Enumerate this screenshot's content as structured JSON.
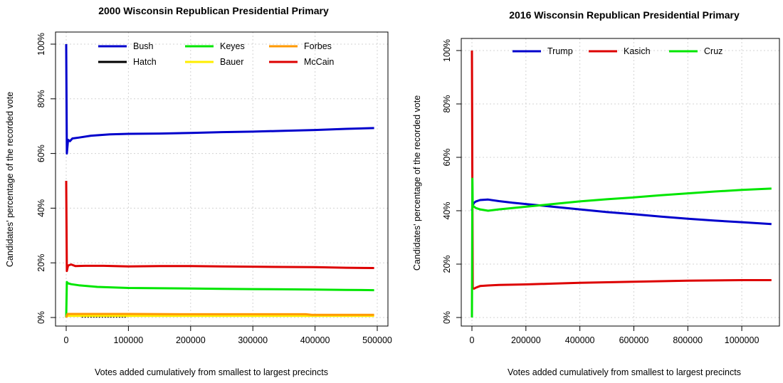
{
  "chart_data": [
    {
      "type": "line",
      "title": "2000 Wisconsin Republican Presidential Primary",
      "xlabel": "Votes added cumulatively from smallest to largest precincts",
      "ylabel": "Candidates' percentage of the recorded vote",
      "xlim": [
        0,
        500000
      ],
      "ylim": [
        0,
        100
      ],
      "x_ticks": [
        "0",
        "100000",
        "200000",
        "300000",
        "400000",
        "500000"
      ],
      "y_ticks": [
        "0%",
        "20%",
        "40%",
        "60%",
        "80%",
        "100%"
      ],
      "grid": true,
      "legend_position": "top",
      "series": [
        {
          "name": "Bush",
          "color": "#0000cc",
          "x": [
            0,
            1000,
            3000,
            6000,
            10000,
            20000,
            40000,
            70000,
            100000,
            150000,
            200000,
            250000,
            300000,
            350000,
            400000,
            450000,
            495000
          ],
          "y": [
            100,
            60,
            65,
            64.5,
            65.5,
            65.8,
            66.5,
            67,
            67.2,
            67.3,
            67.5,
            67.8,
            68,
            68.3,
            68.6,
            69,
            69.3
          ]
        },
        {
          "name": "Hatch",
          "color": "#000000",
          "x": [
            25000,
            50000,
            75000,
            97000
          ],
          "y": [
            0.1,
            0.1,
            0.1,
            0.1
          ]
        },
        {
          "name": "Keyes",
          "color": "#00e600",
          "x": [
            0,
            1000,
            3000,
            8000,
            20000,
            50000,
            100000,
            150000,
            200000,
            250000,
            300000,
            350000,
            400000,
            450000,
            495000
          ],
          "y": [
            0,
            13,
            12.5,
            12.2,
            11.8,
            11.2,
            10.8,
            10.7,
            10.6,
            10.5,
            10.4,
            10.3,
            10.2,
            10.1,
            10
          ]
        },
        {
          "name": "Bauer",
          "color": "#ffee00",
          "x": [
            0,
            100000,
            200000,
            300000,
            400000,
            495000
          ],
          "y": [
            0.6,
            0.6,
            0.6,
            0.6,
            0.6,
            0.6
          ]
        },
        {
          "name": "Forbes",
          "color": "#ff9900",
          "x": [
            0,
            2000,
            100000,
            200000,
            300000,
            385000,
            395000,
            495000
          ],
          "y": [
            0,
            1.3,
            1.3,
            1.2,
            1.2,
            1.2,
            1,
            1
          ]
        },
        {
          "name": "McCain",
          "color": "#dd0000",
          "x": [
            0,
            1000,
            3000,
            8000,
            15000,
            30000,
            60000,
            100000,
            150000,
            200000,
            250000,
            300000,
            350000,
            400000,
            450000,
            495000
          ],
          "y": [
            50,
            17,
            19,
            19.4,
            18.8,
            18.9,
            18.9,
            18.7,
            18.8,
            18.8,
            18.7,
            18.6,
            18.5,
            18.4,
            18.2,
            18.1
          ]
        }
      ]
    },
    {
      "type": "line",
      "title": "2016 Wisconsin Republican Presidential Primary",
      "xlabel": "Votes added cumulatively from smallest to largest precincts",
      "ylabel": "Candidates' percentage of the recorded vote",
      "xlim": [
        0,
        1100000
      ],
      "ylim": [
        0,
        100
      ],
      "x_ticks": [
        "0",
        "200000",
        "400000",
        "600000",
        "800000",
        "1000000"
      ],
      "y_ticks": [
        "0%",
        "20%",
        "40%",
        "60%",
        "80%",
        "100%"
      ],
      "grid": true,
      "legend_position": "top",
      "series": [
        {
          "name": "Trump",
          "color": "#0000cc",
          "x": [
            0,
            3000,
            8000,
            15000,
            30000,
            60000,
            100000,
            150000,
            200000,
            300000,
            400000,
            500000,
            600000,
            700000,
            800000,
            900000,
            1000000,
            1110000
          ],
          "y": [
            40,
            42,
            43,
            43.5,
            44,
            44.2,
            43.6,
            43,
            42.5,
            41.5,
            40.5,
            39.5,
            38.7,
            37.8,
            37,
            36.3,
            35.7,
            35
          ]
        },
        {
          "name": "Kasich",
          "color": "#dd0000",
          "x": [
            0,
            1500,
            3000,
            8000,
            15000,
            30000,
            60000,
            100000,
            200000,
            300000,
            400000,
            500000,
            600000,
            700000,
            800000,
            900000,
            1000000,
            1110000
          ],
          "y": [
            100,
            50,
            11,
            10.8,
            11.2,
            11.8,
            12,
            12.2,
            12.4,
            12.7,
            13,
            13.2,
            13.4,
            13.6,
            13.8,
            13.9,
            14,
            14
          ]
        },
        {
          "name": "Cruz",
          "color": "#00e600",
          "x": [
            0,
            1500,
            3000,
            8000,
            15000,
            30000,
            60000,
            100000,
            150000,
            200000,
            300000,
            400000,
            500000,
            600000,
            700000,
            800000,
            900000,
            1000000,
            1110000
          ],
          "y": [
            0,
            52,
            42,
            41.5,
            41,
            40.5,
            40,
            40.5,
            41,
            41.5,
            42.5,
            43.5,
            44.3,
            45,
            45.8,
            46.5,
            47.2,
            47.8,
            48.3
          ]
        }
      ]
    }
  ]
}
